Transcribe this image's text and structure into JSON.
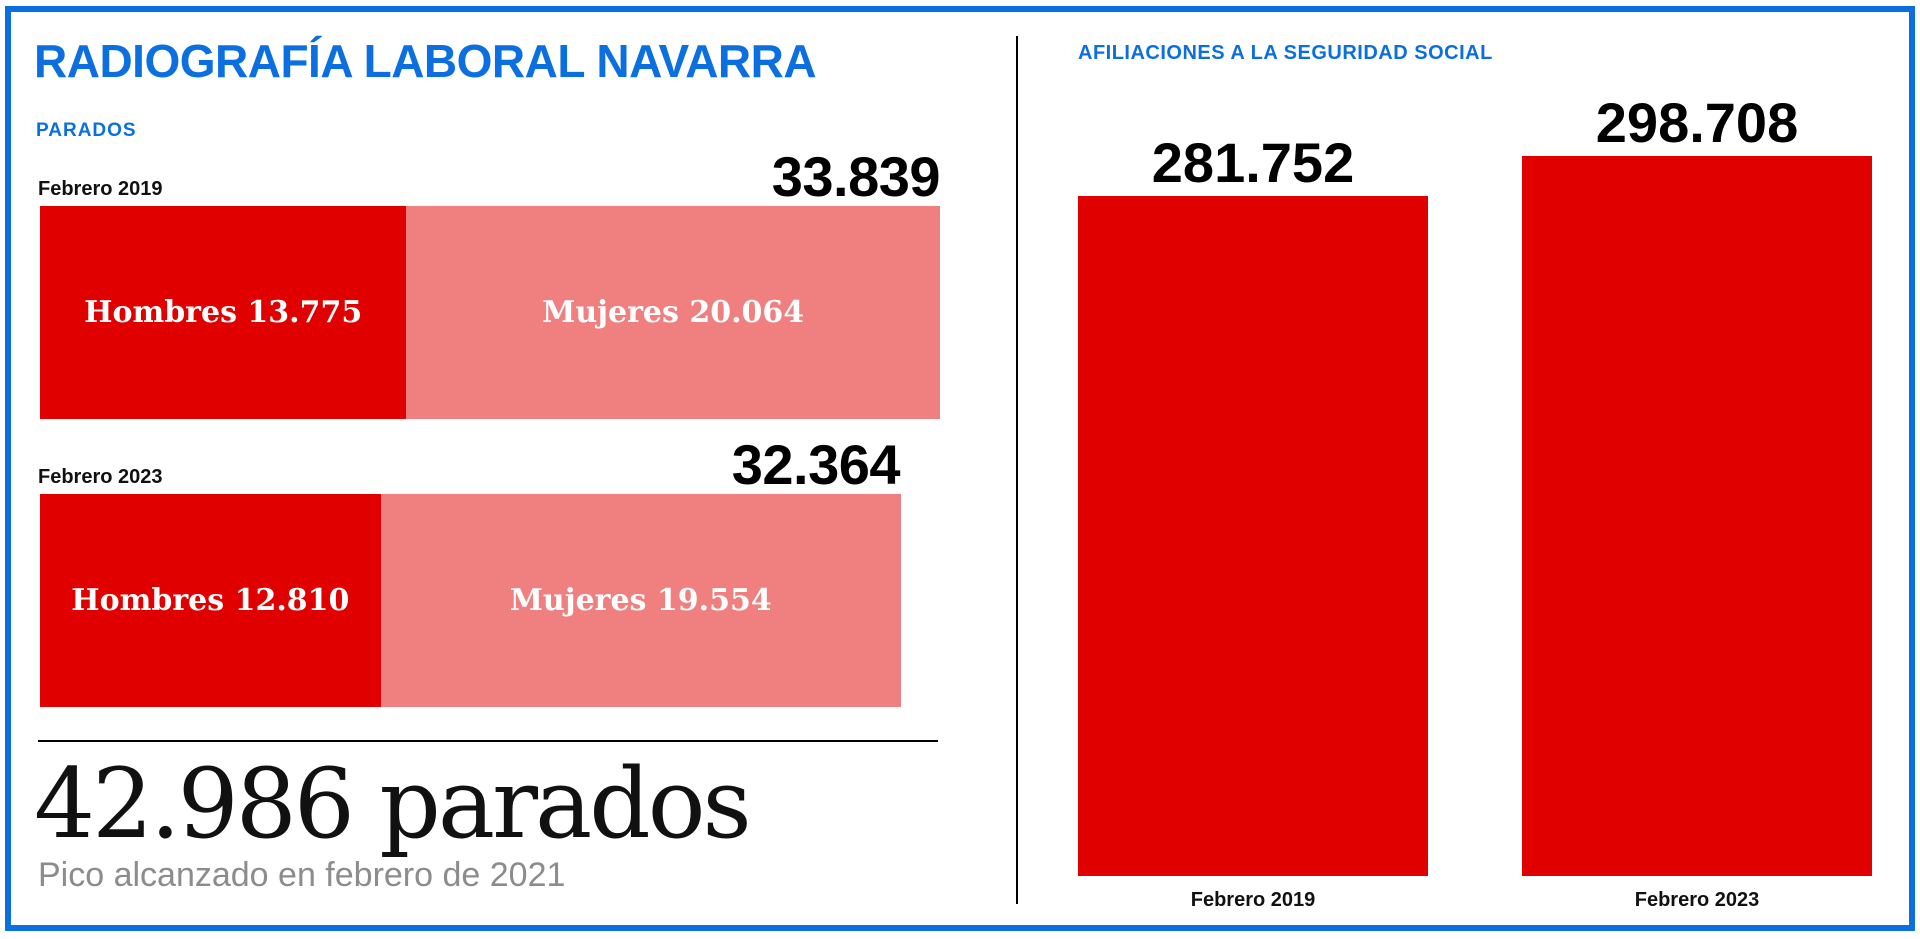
{
  "title": "RADIOGRAFÍA LABORAL NAVARRA",
  "parados": {
    "label": "PARADOS",
    "rows": [
      {
        "period": "Febrero 2019",
        "total": "33.839",
        "men_label": "Hombres 13.775",
        "women_label": "Mujeres 20.064",
        "men": 13775,
        "women": 20064
      },
      {
        "period": "Febrero 2023",
        "total": "32.364",
        "men_label": "Hombres 12.810",
        "women_label": "Mujeres 19.554",
        "men": 12810,
        "women": 19554
      }
    ],
    "peak": {
      "value": "42.986 parados",
      "caption": "Pico alcanzado en febrero de 2021"
    }
  },
  "colors": {
    "accent": "#0b6fe0",
    "men": "#e00000",
    "women": "#f08080",
    "bar": "#e00000"
  },
  "chart_data": [
    {
      "type": "bar",
      "stacked": true,
      "orientation": "horizontal",
      "title": "PARADOS",
      "categories": [
        "Febrero 2019",
        "Febrero 2023"
      ],
      "series": [
        {
          "name": "Hombres",
          "values": [
            13775,
            12810
          ]
        },
        {
          "name": "Mujeres",
          "values": [
            20064,
            19554
          ]
        }
      ],
      "totals": [
        33839,
        32364
      ]
    },
    {
      "type": "bar",
      "title": "AFILIACIONES A LA SEGURIDAD SOCIAL",
      "categories": [
        "Febrero 2019",
        "Febrero 2023"
      ],
      "values": [
        281752,
        298708
      ],
      "value_labels": [
        "281.752",
        "298.708"
      ]
    }
  ]
}
